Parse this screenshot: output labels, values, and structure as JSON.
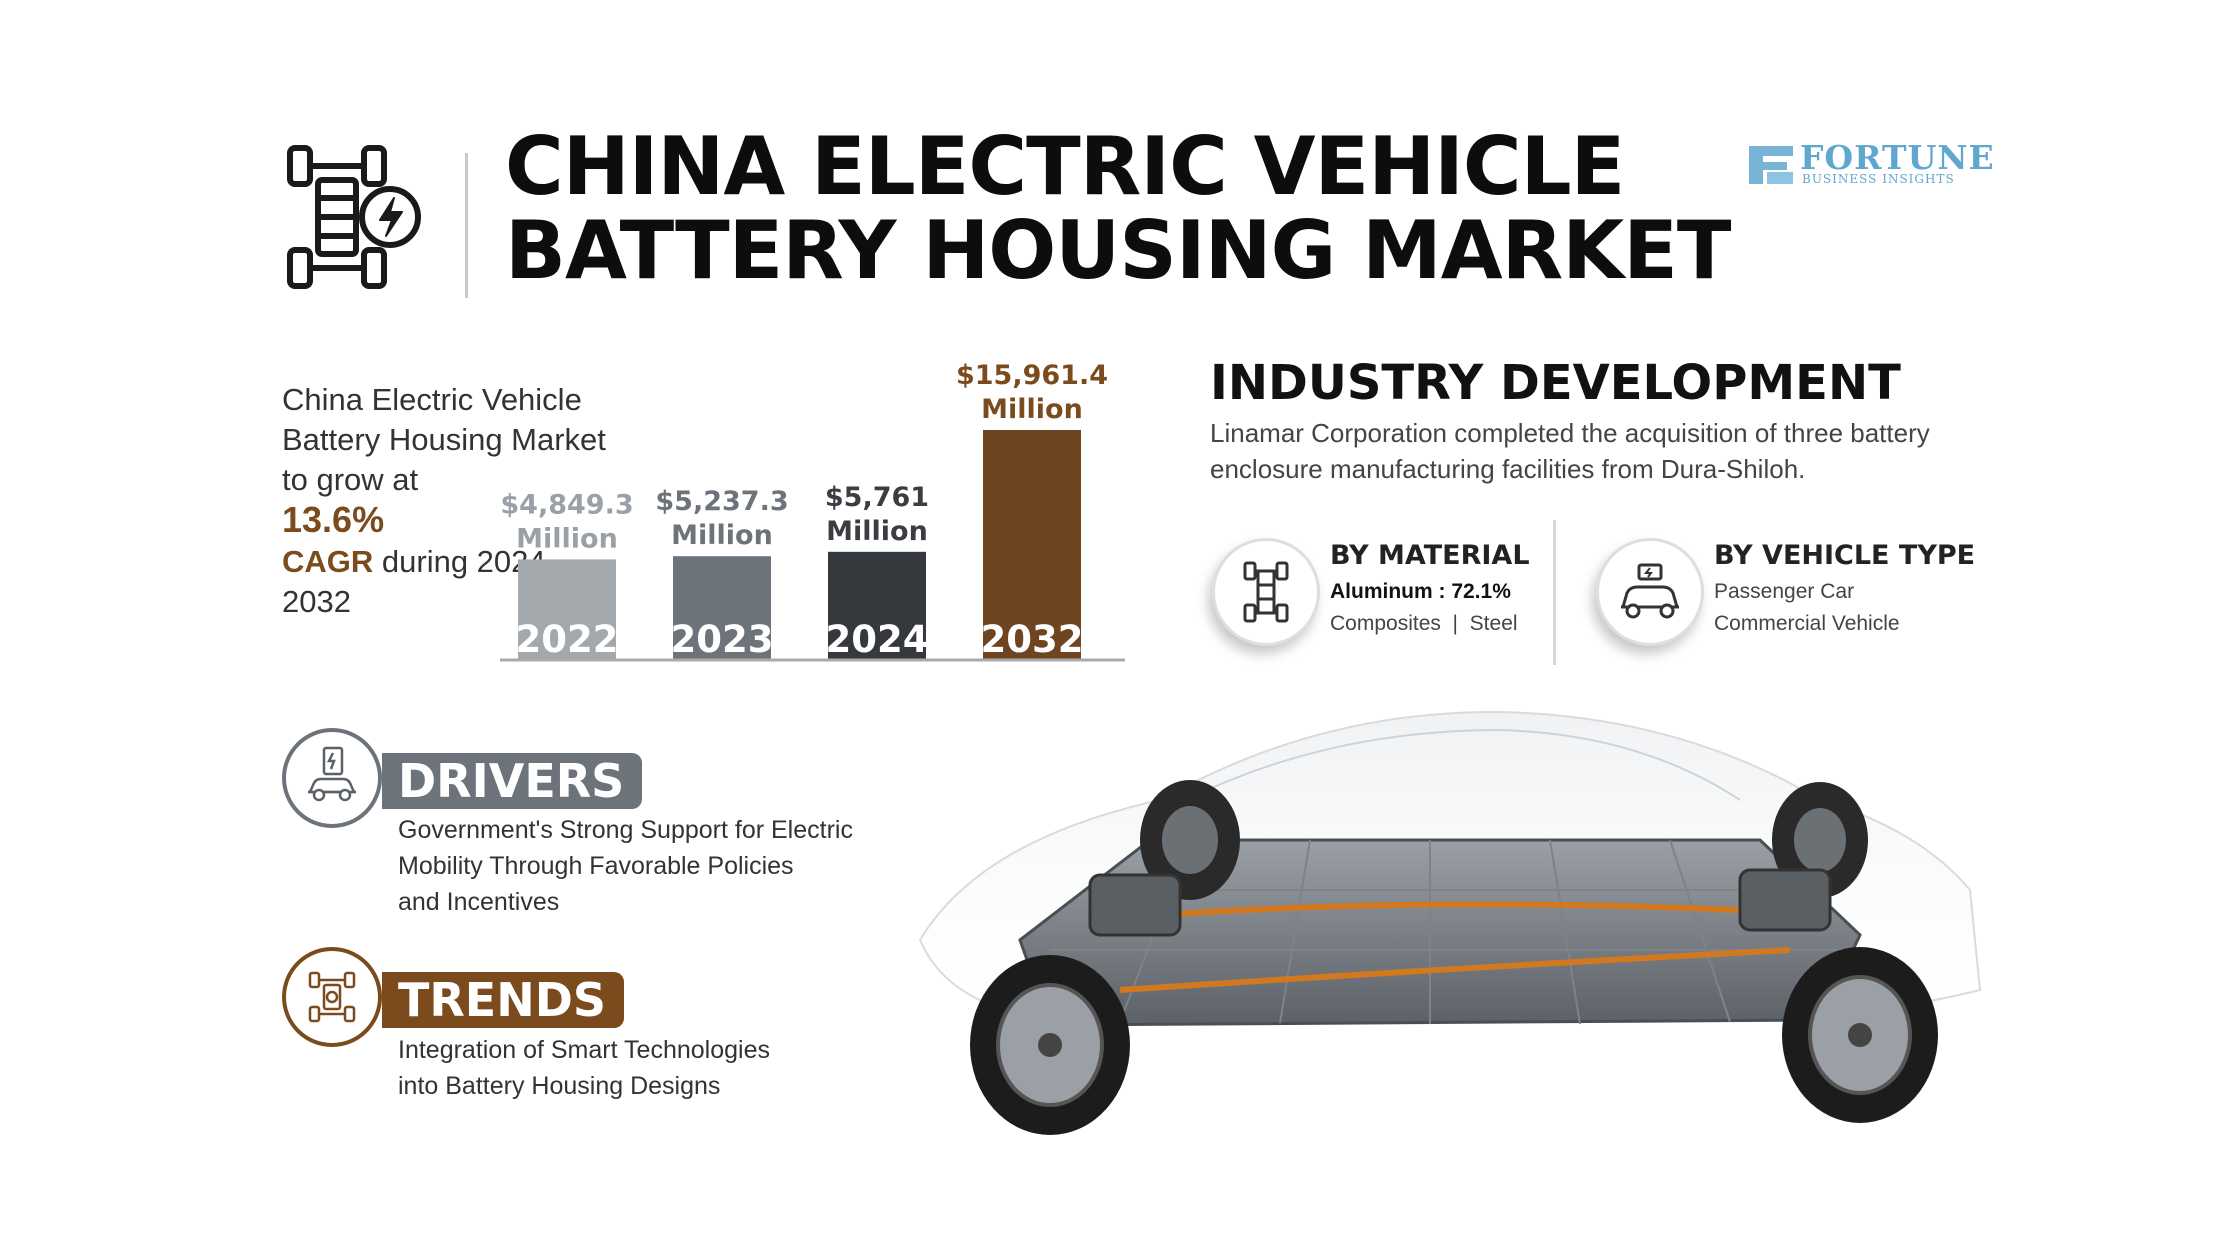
{
  "header": {
    "title_line1": "CHINA ELECTRIC VEHICLE",
    "title_line2": "BATTERY HOUSING MARKET",
    "logo_text": "FORTUNE",
    "logo_subtext": "BUSINESS INSIGHTS"
  },
  "growth": {
    "text": "China Electric Vehicle Battery Housing Market to grow at",
    "cagr_value": "13.6%",
    "cagr_label": "CAGR",
    "suffix": " during 2024-2032"
  },
  "chart_data": {
    "type": "bar",
    "categories": [
      "2022",
      "2023",
      "2024",
      "2032"
    ],
    "values": [
      4849.3,
      5237.3,
      5761,
      15961.4
    ],
    "value_labels": [
      "$4,849.3",
      "$5,237.3",
      "$5,761",
      "$15,961.4"
    ],
    "unit_label": "Million",
    "colors": [
      "#a3a8ad",
      "#6c737a",
      "#35393d",
      "#6f4420"
    ],
    "label_colors": [
      "#9aa0a6",
      "#6c737a",
      "#3a3e42",
      "#7b4b1d"
    ]
  },
  "industry": {
    "title": "INDUSTRY DEVELOPMENT",
    "text": "Linamar Corporation completed the acquisition of three battery enclosure manufacturing facilities from Dura-Shiloh."
  },
  "segments": {
    "material": {
      "title": "BY MATERIAL",
      "highlight": "Aluminum : 72.1%",
      "others": "Composites  |  Steel"
    },
    "vehicle": {
      "title": "BY VEHICLE TYPE",
      "items": [
        "Passenger Car",
        "Commercial Vehicle"
      ]
    }
  },
  "drivers": {
    "label": "DRIVERS",
    "text_lines": [
      "Government's Strong Support for Electric",
      "Mobility Through Favorable Policies",
      "and Incentives"
    ],
    "color": "#6c737a"
  },
  "trends": {
    "label": "TRENDS",
    "text_lines": [
      "Integration of Smart Technologies",
      "into Battery Housing Designs"
    ],
    "color": "#7b4b1d"
  }
}
